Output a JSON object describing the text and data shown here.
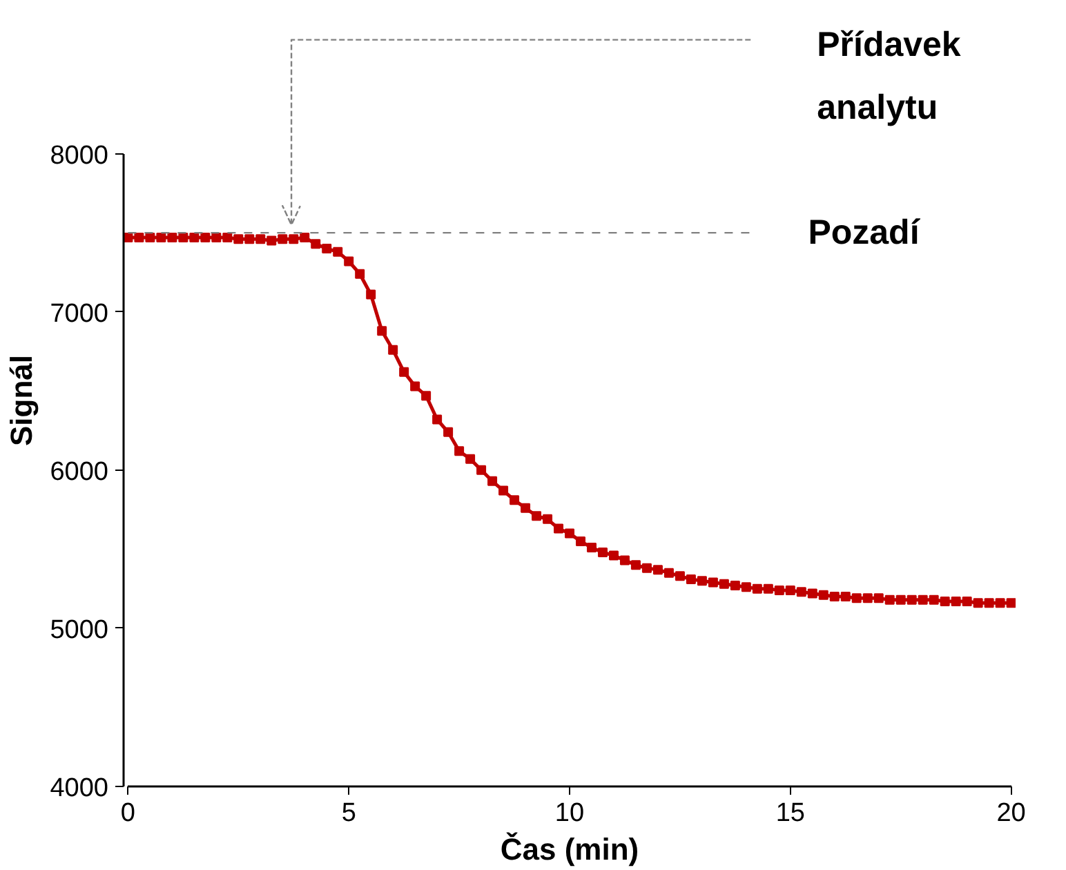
{
  "chart_data": {
    "type": "line",
    "xlabel": "Čas (min)",
    "ylabel": "Signál",
    "x": [
      0,
      0.25,
      0.5,
      0.75,
      1,
      1.25,
      1.5,
      1.75,
      2,
      2.25,
      2.5,
      2.75,
      3,
      3.25,
      3.5,
      3.75,
      4,
      4.25,
      4.5,
      4.75,
      5,
      5.25,
      5.5,
      5.75,
      6,
      6.25,
      6.5,
      6.75,
      7,
      7.25,
      7.5,
      7.75,
      8,
      8.25,
      8.5,
      8.75,
      9,
      9.25,
      9.5,
      9.75,
      10,
      10.25,
      10.5,
      10.75,
      11,
      11.25,
      11.5,
      11.75,
      12,
      12.25,
      12.5,
      12.75,
      13,
      13.25,
      13.5,
      13.75,
      14,
      14.25,
      14.5,
      14.75,
      15,
      15.25,
      15.5,
      15.75,
      16,
      16.25,
      16.5,
      16.75,
      17,
      17.25,
      17.5,
      17.75,
      18,
      18.25,
      18.5,
      18.75,
      19,
      19.25,
      19.5,
      19.75,
      20
    ],
    "series": [
      {
        "color": "#c00000",
        "values": [
          7470,
          7470,
          7470,
          7470,
          7470,
          7470,
          7470,
          7470,
          7470,
          7470,
          7460,
          7460,
          7460,
          7450,
          7460,
          7460,
          7470,
          7430,
          7400,
          7380,
          7320,
          7240,
          7110,
          6880,
          6760,
          6620,
          6530,
          6470,
          6320,
          6240,
          6120,
          6070,
          6000,
          5930,
          5870,
          5810,
          5760,
          5710,
          5690,
          5630,
          5600,
          5550,
          5510,
          5480,
          5460,
          5430,
          5400,
          5380,
          5370,
          5350,
          5330,
          5310,
          5300,
          5290,
          5280,
          5270,
          5260,
          5250,
          5250,
          5240,
          5240,
          5230,
          5220,
          5210,
          5200,
          5200,
          5190,
          5190,
          5190,
          5180,
          5180,
          5180,
          5180,
          5180,
          5170,
          5170,
          5170,
          5160,
          5160,
          5160,
          5160
        ]
      }
    ],
    "xlim": [
      0,
      20
    ],
    "ylim": [
      4000,
      8000
    ],
    "xticks": [
      0,
      5,
      10,
      15,
      20
    ],
    "yticks": [
      4000,
      5000,
      6000,
      7000,
      8000
    ],
    "marker": "square",
    "line_style": "solid",
    "grid": false,
    "ref_lines": [
      {
        "axis": "y",
        "value": 7500,
        "label": "Pozadí",
        "color": "#808080",
        "line_style": "dashed"
      },
      {
        "axis": "x",
        "value": 3.7,
        "label": "Přídavek analytu",
        "color": "#808080",
        "line_style": "dashed"
      }
    ]
  }
}
